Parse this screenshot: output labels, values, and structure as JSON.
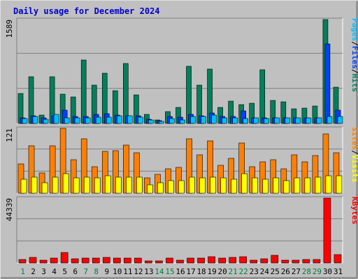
{
  "title": "Daily usage for December 2024",
  "colors": {
    "frame": "#c0c0c0",
    "plot_bg": "#c0c0c0",
    "grid": "#808080",
    "title": "#0000cc",
    "hits": "#00805c",
    "files": "#0040ff",
    "pages": "#00c0ff",
    "visits": "#ff8000",
    "sites": "#ffff00",
    "kbytes": "#ff0000",
    "weekday": "#000000",
    "weekend": "#008040"
  },
  "chart_data": [
    {
      "type": "bar",
      "panel": "requests",
      "ymax_label": "1589",
      "ylim": [
        0,
        1589
      ],
      "legend_parts": [
        {
          "text": "Pages",
          "color": "#00c0ff"
        },
        {
          "text": "/",
          "color": "#000000"
        },
        {
          "text": "Files",
          "color": "#0040ff"
        },
        {
          "text": "/",
          "color": "#000000"
        },
        {
          "text": "Hits",
          "color": "#00805c"
        }
      ],
      "categories": [
        "1",
        "2",
        "3",
        "4",
        "5",
        "6",
        "7",
        "8",
        "9",
        "10",
        "11",
        "12",
        "13",
        "14",
        "15",
        "16",
        "17",
        "18",
        "19",
        "20",
        "21",
        "22",
        "23",
        "24",
        "25",
        "26",
        "27",
        "28",
        "29",
        "30",
        "31"
      ],
      "series": [
        {
          "name": "Hits",
          "values": [
            460,
            710,
            130,
            710,
            450,
            400,
            970,
            590,
            770,
            500,
            920,
            440,
            140,
            50,
            180,
            240,
            870,
            590,
            830,
            240,
            340,
            290,
            310,
            820,
            350,
            330,
            220,
            230,
            270,
            1589,
            550
          ]
        },
        {
          "name": "Files",
          "values": [
            80,
            120,
            80,
            120,
            200,
            110,
            110,
            140,
            150,
            130,
            120,
            120,
            60,
            40,
            110,
            100,
            140,
            120,
            160,
            110,
            110,
            190,
            90,
            80,
            90,
            90,
            90,
            90,
            90,
            1220,
            200
          ]
        },
        {
          "name": "Pages",
          "values": [
            70,
            110,
            60,
            140,
            80,
            90,
            90,
            100,
            100,
            120,
            120,
            100,
            50,
            30,
            70,
            50,
            110,
            110,
            130,
            90,
            80,
            70,
            80,
            70,
            80,
            80,
            80,
            80,
            90,
            110,
            110
          ]
        }
      ]
    },
    {
      "type": "bar",
      "panel": "visits",
      "ymax_label": "121",
      "ylim": [
        0,
        121
      ],
      "legend_parts": [
        {
          "text": "Sites",
          "color": "#ff8000"
        },
        {
          "text": "/",
          "color": "#000000"
        },
        {
          "text": "Visits",
          "color": "#ffff00"
        }
      ],
      "categories": [
        "1",
        "2",
        "3",
        "4",
        "5",
        "6",
        "7",
        "8",
        "9",
        "10",
        "11",
        "12",
        "13",
        "14",
        "15",
        "16",
        "17",
        "18",
        "19",
        "20",
        "21",
        "22",
        "23",
        "24",
        "25",
        "26",
        "27",
        "28",
        "29",
        "30",
        "31"
      ],
      "series": [
        {
          "name": "Visits",
          "values": [
            55,
            88,
            38,
            88,
            121,
            62,
            102,
            50,
            78,
            80,
            90,
            75,
            28,
            35,
            45,
            48,
            101,
            72,
            97,
            52,
            65,
            94,
            50,
            58,
            62,
            45,
            72,
            58,
            70,
            110,
            75
          ]
        },
        {
          "name": "Sites",
          "values": [
            26,
            30,
            20,
            30,
            36,
            28,
            30,
            28,
            32,
            30,
            30,
            30,
            16,
            20,
            24,
            24,
            30,
            28,
            30,
            28,
            26,
            36,
            28,
            26,
            28,
            24,
            28,
            28,
            30,
            32,
            32
          ]
        }
      ]
    },
    {
      "type": "bar",
      "panel": "kbytes",
      "ymax_label": "44339",
      "ylim": [
        0,
        44339
      ],
      "legend_parts": [
        {
          "text": "KBytes",
          "color": "#ff0000"
        }
      ],
      "categories": [
        "1",
        "2",
        "3",
        "4",
        "5",
        "6",
        "7",
        "8",
        "9",
        "10",
        "11",
        "12",
        "13",
        "14",
        "15",
        "16",
        "17",
        "18",
        "19",
        "20",
        "21",
        "22",
        "23",
        "24",
        "25",
        "26",
        "27",
        "28",
        "29",
        "30",
        "31"
      ],
      "series": [
        {
          "name": "KBytes",
          "values": [
            2400,
            3800,
            1700,
            3400,
            7000,
            3000,
            3200,
            3100,
            3600,
            3300,
            3200,
            3200,
            1500,
            1300,
            3200,
            1700,
            3500,
            3100,
            4300,
            3200,
            3600,
            4400,
            2000,
            3000,
            5100,
            1900,
            2100,
            2300,
            2400,
            44339,
            5800
          ]
        }
      ]
    }
  ],
  "x_axis": {
    "labels": [
      "1",
      "2",
      "3",
      "4",
      "5",
      "6",
      "7",
      "8",
      "9",
      "10",
      "11",
      "12",
      "13",
      "14",
      "15",
      "16",
      "17",
      "18",
      "19",
      "20",
      "21",
      "22",
      "23",
      "24",
      "25",
      "26",
      "27",
      "28",
      "29",
      "30",
      "31"
    ],
    "weekend_days": [
      "1",
      "7",
      "8",
      "14",
      "15",
      "21",
      "22",
      "28",
      "29"
    ]
  }
}
